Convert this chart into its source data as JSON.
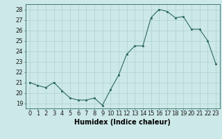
{
  "x": [
    0,
    1,
    2,
    3,
    4,
    5,
    6,
    7,
    8,
    9,
    10,
    11,
    12,
    13,
    14,
    15,
    16,
    17,
    18,
    19,
    20,
    21,
    22,
    23
  ],
  "y": [
    21.0,
    20.7,
    20.5,
    21.0,
    20.2,
    19.5,
    19.3,
    19.3,
    19.5,
    18.8,
    20.3,
    21.7,
    23.7,
    24.5,
    24.5,
    27.2,
    28.0,
    27.8,
    27.2,
    27.3,
    26.1,
    26.1,
    25.0,
    22.8
  ],
  "line_color": "#2d6b5e",
  "marker_color": "#2d6b5e",
  "bg_color": "#cce8e8",
  "grid_color": "#b0d0d0",
  "xlabel": "Humidex (Indice chaleur)",
  "ylabel_ticks": [
    19,
    20,
    21,
    22,
    23,
    24,
    25,
    26,
    27,
    28
  ],
  "xlim": [
    -0.5,
    23.5
  ],
  "ylim": [
    18.5,
    28.5
  ],
  "tick_fontsize": 6.0,
  "xlabel_fontsize": 7.0
}
